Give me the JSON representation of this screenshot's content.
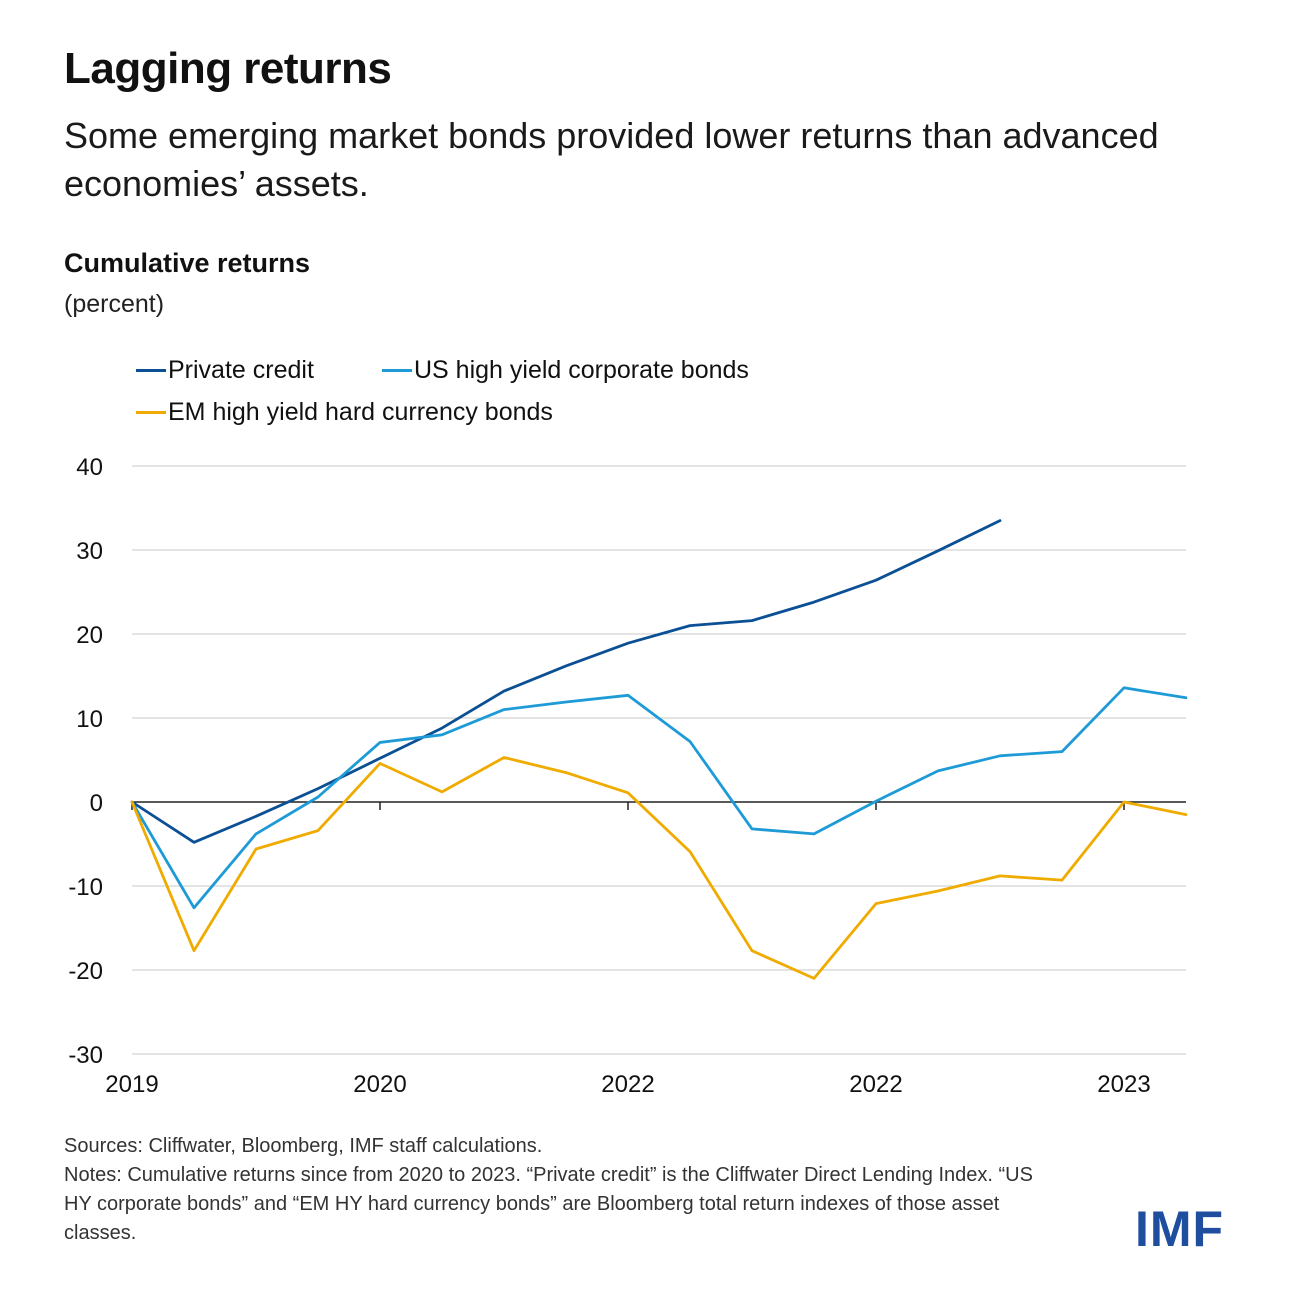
{
  "header": {
    "title": "Lagging returns",
    "subtitle": "Some emerging market bonds provided lower returns than advanced economies’ assets."
  },
  "footer": {
    "sources": "Sources: Cliffwater, Bloomberg, IMF staff calculations.",
    "notes": "Notes: Cumulative returns since from 2020 to 2023. “Private credit” is the Cliffwater Direct Lending Index. “US HY corporate bonds” and “EM HY hard currency bonds” are Bloomberg total return indexes of those asset classes."
  },
  "logo": {
    "text": "IMF"
  },
  "chart_data": {
    "type": "line",
    "title": "Cumulative returns",
    "ylabel": "(percent)",
    "xlabel": "",
    "ylim": [
      -30,
      40
    ],
    "yticks": [
      40,
      30,
      20,
      10,
      0,
      -10,
      -20,
      -30
    ],
    "grid": true,
    "legend_position": "top-left",
    "x": [
      0,
      1,
      2,
      3,
      4,
      5,
      6,
      7,
      8,
      9,
      10,
      11,
      12,
      13,
      14,
      15,
      16,
      17
    ],
    "x_tick_labels": [
      {
        "at": 0,
        "label": "2019"
      },
      {
        "at": 4,
        "label": "2020"
      },
      {
        "at": 8,
        "label": "2022"
      },
      {
        "at": 12,
        "label": "2022"
      },
      {
        "at": 16,
        "label": "2023"
      }
    ],
    "series": [
      {
        "name": "Private credit",
        "color": "#0b4f94",
        "values": [
          0,
          -4.8,
          -1.7,
          1.6,
          5.2,
          8.8,
          13.2,
          16.2,
          18.9,
          21.0,
          21.6,
          23.8,
          26.4,
          29.9,
          33.5,
          null,
          null,
          null
        ]
      },
      {
        "name": "US high yield corporate bonds",
        "color": "#1e9bd7",
        "values": [
          0,
          -12.6,
          -3.8,
          0.6,
          7.1,
          8.0,
          11.0,
          11.9,
          12.7,
          7.2,
          -3.2,
          -3.8,
          0.1,
          3.7,
          5.5,
          6.0,
          13.6,
          12.4
        ]
      },
      {
        "name": "EM high yield hard currency bonds",
        "color": "#f0ab00",
        "values": [
          0,
          -17.7,
          -5.6,
          -3.4,
          4.6,
          1.2,
          5.3,
          3.5,
          1.1,
          -5.9,
          -17.7,
          -21.0,
          -12.1,
          -10.6,
          -8.8,
          -9.3,
          0.0,
          -1.5
        ]
      }
    ]
  }
}
